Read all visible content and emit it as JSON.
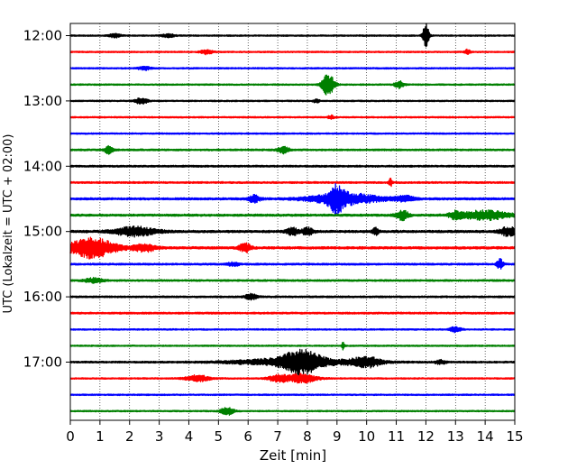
{
  "chart_data": {
    "type": "line",
    "title": "",
    "xlabel": "Zeit  [min]",
    "ylabel": "UTC (Lokalzeit = UTC + 02:00)",
    "xlim": [
      0,
      15
    ],
    "x_ticks": [
      "0",
      "1",
      "2",
      "3",
      "4",
      "5",
      "6",
      "7",
      "8",
      "9",
      "10",
      "11",
      "12",
      "13",
      "14",
      "15"
    ],
    "y_tick_labels": [
      "12:00",
      "13:00",
      "14:00",
      "15:00",
      "16:00",
      "17:00"
    ],
    "grid": "vertical dotted at each minute",
    "trace_interval_min": 15,
    "trace_colors": [
      "#000000",
      "#ff0000",
      "#0000ff",
      "#008000"
    ],
    "base_noise": [
      0.8,
      0.8,
      0.8,
      0.8,
      0.8,
      0.8,
      0.8,
      1.0,
      1.0,
      1.0,
      1.2,
      1.2,
      1.3,
      1.3,
      1.0,
      1.0,
      1.0,
      1.0,
      0.8,
      0.8,
      1.0,
      0.8,
      0.8,
      0.8
    ],
    "series": [
      {
        "time": "12:00",
        "color": "#000000",
        "events": [
          {
            "t": 12.0,
            "amp": 16,
            "dur": 0.1
          },
          {
            "t": 1.5,
            "amp": 2,
            "dur": 0.2
          },
          {
            "t": 3.3,
            "amp": 2,
            "dur": 0.2
          }
        ]
      },
      {
        "time": "12:15",
        "color": "#ff0000",
        "events": [
          {
            "t": 4.6,
            "amp": 2.5,
            "dur": 0.2
          },
          {
            "t": 13.4,
            "amp": 2.5,
            "dur": 0.1
          }
        ]
      },
      {
        "time": "12:30",
        "color": "#0000ff",
        "events": [
          {
            "t": 2.5,
            "amp": 2,
            "dur": 0.2
          }
        ]
      },
      {
        "time": "12:45",
        "color": "#008000",
        "events": [
          {
            "t": 8.7,
            "amp": 13,
            "dur": 0.2
          },
          {
            "t": 11.1,
            "amp": 4,
            "dur": 0.15
          }
        ]
      },
      {
        "time": "13:00",
        "color": "#000000",
        "events": [
          {
            "t": 2.4,
            "amp": 3.5,
            "dur": 0.2
          },
          {
            "t": 8.3,
            "amp": 2,
            "dur": 0.1
          }
        ]
      },
      {
        "time": "13:15",
        "color": "#ff0000",
        "events": [
          {
            "t": 8.8,
            "amp": 2,
            "dur": 0.1
          }
        ]
      },
      {
        "time": "13:30",
        "color": "#0000ff",
        "events": []
      },
      {
        "time": "13:45",
        "color": "#008000",
        "events": [
          {
            "t": 1.3,
            "amp": 4,
            "dur": 0.15
          },
          {
            "t": 7.2,
            "amp": 3.5,
            "dur": 0.2
          }
        ]
      },
      {
        "time": "14:00",
        "color": "#000000",
        "events": []
      },
      {
        "time": "14:15",
        "color": "#ff0000",
        "events": [
          {
            "t": 10.8,
            "amp": 5,
            "dur": 0.05
          }
        ]
      },
      {
        "time": "14:30",
        "color": "#0000ff",
        "events": [
          {
            "t": 6.2,
            "amp": 4,
            "dur": 0.2
          },
          {
            "t": 9.0,
            "amp": 12,
            "dur": 0.25
          },
          {
            "t": 9.3,
            "amp": 6,
            "dur": 1.2
          },
          {
            "t": 11.3,
            "amp": 3,
            "dur": 0.3
          }
        ]
      },
      {
        "time": "14:45",
        "color": "#008000",
        "events": [
          {
            "t": 11.2,
            "amp": 6,
            "dur": 0.2
          },
          {
            "t": 14.0,
            "amp": 5,
            "dur": 0.8
          },
          {
            "t": 13.0,
            "amp": 4,
            "dur": 0.2
          }
        ]
      },
      {
        "time": "15:00",
        "color": "#000000",
        "events": [
          {
            "t": 2.2,
            "amp": 5,
            "dur": 0.7
          },
          {
            "t": 7.5,
            "amp": 4,
            "dur": 0.2
          },
          {
            "t": 8.0,
            "amp": 4,
            "dur": 0.2
          },
          {
            "t": 14.8,
            "amp": 5,
            "dur": 0.3
          },
          {
            "t": 10.3,
            "amp": 4,
            "dur": 0.1
          }
        ]
      },
      {
        "time": "15:15",
        "color": "#ff0000",
        "events": [
          {
            "t": 0.7,
            "amp": 11,
            "dur": 0.8
          },
          {
            "t": 2.5,
            "amp": 4,
            "dur": 0.4
          },
          {
            "t": 5.9,
            "amp": 5,
            "dur": 0.2
          }
        ]
      },
      {
        "time": "15:30",
        "color": "#0000ff",
        "events": [
          {
            "t": 14.5,
            "amp": 6,
            "dur": 0.1
          },
          {
            "t": 5.5,
            "amp": 2,
            "dur": 0.2
          }
        ]
      },
      {
        "time": "15:45",
        "color": "#008000",
        "events": [
          {
            "t": 0.8,
            "amp": 2.5,
            "dur": 0.3
          }
        ]
      },
      {
        "time": "16:00",
        "color": "#000000",
        "events": [
          {
            "t": 6.1,
            "amp": 3,
            "dur": 0.2
          }
        ]
      },
      {
        "time": "16:15",
        "color": "#ff0000",
        "events": []
      },
      {
        "time": "16:30",
        "color": "#0000ff",
        "events": [
          {
            "t": 13.0,
            "amp": 3,
            "dur": 0.2
          }
        ]
      },
      {
        "time": "16:45",
        "color": "#008000",
        "events": [
          {
            "t": 9.2,
            "amp": 4,
            "dur": 0.05
          }
        ]
      },
      {
        "time": "17:00",
        "color": "#000000",
        "events": [
          {
            "t": 7.8,
            "amp": 10,
            "dur": 0.6
          },
          {
            "t": 7.6,
            "amp": 4,
            "dur": 2.0
          },
          {
            "t": 10.0,
            "amp": 5,
            "dur": 0.5
          },
          {
            "t": 12.5,
            "amp": 2,
            "dur": 0.2
          }
        ]
      },
      {
        "time": "17:15",
        "color": "#ff0000",
        "events": [
          {
            "t": 4.3,
            "amp": 3.5,
            "dur": 0.4
          },
          {
            "t": 7.0,
            "amp": 4,
            "dur": 0.3
          },
          {
            "t": 7.8,
            "amp": 5,
            "dur": 0.5
          }
        ]
      },
      {
        "time": "17:30",
        "color": "#0000ff",
        "events": []
      },
      {
        "time": "17:45",
        "color": "#008000",
        "events": [
          {
            "t": 5.3,
            "amp": 5,
            "dur": 0.2
          }
        ]
      }
    ]
  }
}
